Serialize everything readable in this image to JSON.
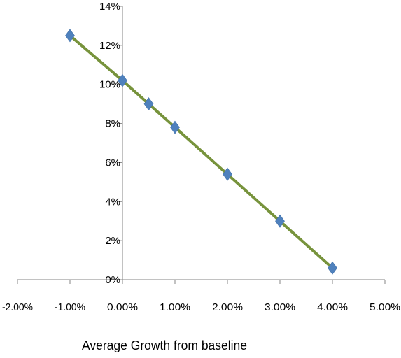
{
  "chart_data": {
    "type": "line",
    "title": "",
    "xlabel": "Average Growth from baseline",
    "ylabel": "",
    "xlim": [
      -0.02,
      0.05
    ],
    "ylim": [
      0,
      0.14
    ],
    "x_ticks": [
      -0.02,
      -0.01,
      0.0,
      0.01,
      0.02,
      0.03,
      0.04,
      0.05
    ],
    "x_tick_labels": [
      "-2.00%",
      "-1.00%",
      "0.00%",
      "1.00%",
      "2.00%",
      "3.00%",
      "4.00%",
      "5.00%"
    ],
    "y_ticks": [
      0,
      0.02,
      0.04,
      0.06,
      0.08,
      0.1,
      0.12,
      0.14
    ],
    "y_tick_labels": [
      "0%",
      "2%",
      "4%",
      "6%",
      "8%",
      "10%",
      "12%",
      "14%"
    ],
    "grid": false,
    "legend": "none",
    "series": [
      {
        "x": [
          -0.01,
          0.0,
          0.005,
          0.01,
          0.02,
          0.03,
          0.04
        ],
        "y": [
          0.125,
          0.102,
          0.09,
          0.078,
          0.054,
          0.03,
          0.006
        ],
        "marker": "diamond",
        "marker_color": "#4F81BD",
        "line_color": "#77933C"
      }
    ]
  }
}
